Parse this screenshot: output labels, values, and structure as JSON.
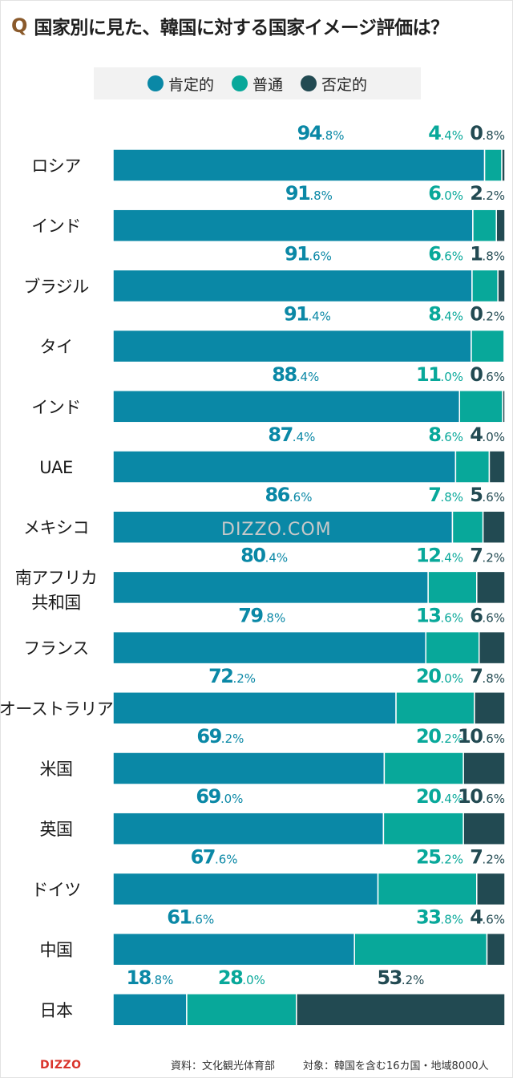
{
  "title": {
    "q_mark": "Q",
    "text": "国家別に見た、韓国に対する国家イメージ評価は？"
  },
  "legend": [
    {
      "label": "肯定的",
      "color": "#0a88a6"
    },
    {
      "label": "普通",
      "color": "#08a89a"
    },
    {
      "label": "否定的",
      "color": "#224a52"
    }
  ],
  "watermark": "DIZZO.COM",
  "footer": {
    "logo": "DIZZO",
    "source": "資料：文化観光体育部",
    "target": "対象：韓国を含む16カ国・地域8000人"
  },
  "chart_data": {
    "type": "bar",
    "orientation": "horizontal",
    "stacked": true,
    "unit": "%",
    "categories": [
      "ロシア",
      "インド",
      "ブラジル",
      "タイ",
      "インド",
      "UAE",
      "メキシコ",
      "南アフリカ共和国",
      "フランス",
      "オーストラリア",
      "米国",
      "英国",
      "ドイツ",
      "中国",
      "日本"
    ],
    "category_lines": [
      [
        "ロシア"
      ],
      [
        "インド"
      ],
      [
        "ブラジル"
      ],
      [
        "タイ"
      ],
      [
        "インド"
      ],
      [
        "UAE"
      ],
      [
        "メキシコ"
      ],
      [
        "南アフリカ",
        "共和国"
      ],
      [
        "フランス"
      ],
      [
        "オーストラリア"
      ],
      [
        "米国"
      ],
      [
        "英国"
      ],
      [
        "ドイツ"
      ],
      [
        "中国"
      ],
      [
        "日本"
      ]
    ],
    "series": [
      {
        "name": "肯定的",
        "values": [
          94.8,
          91.8,
          91.6,
          91.4,
          88.4,
          87.4,
          86.6,
          80.4,
          79.8,
          72.2,
          69.2,
          69.0,
          67.6,
          61.6,
          18.8
        ]
      },
      {
        "name": "普通",
        "values": [
          4.4,
          6.0,
          6.6,
          8.4,
          11.0,
          8.6,
          7.8,
          12.4,
          13.6,
          20.0,
          20.2,
          20.4,
          25.2,
          33.8,
          28.0
        ]
      },
      {
        "name": "否定的",
        "values": [
          0.8,
          2.2,
          1.8,
          0.2,
          0.6,
          4.0,
          5.6,
          7.2,
          6.6,
          7.8,
          10.6,
          10.6,
          7.2,
          4.6,
          53.2
        ]
      }
    ],
    "xlim": [
      0,
      100
    ]
  }
}
